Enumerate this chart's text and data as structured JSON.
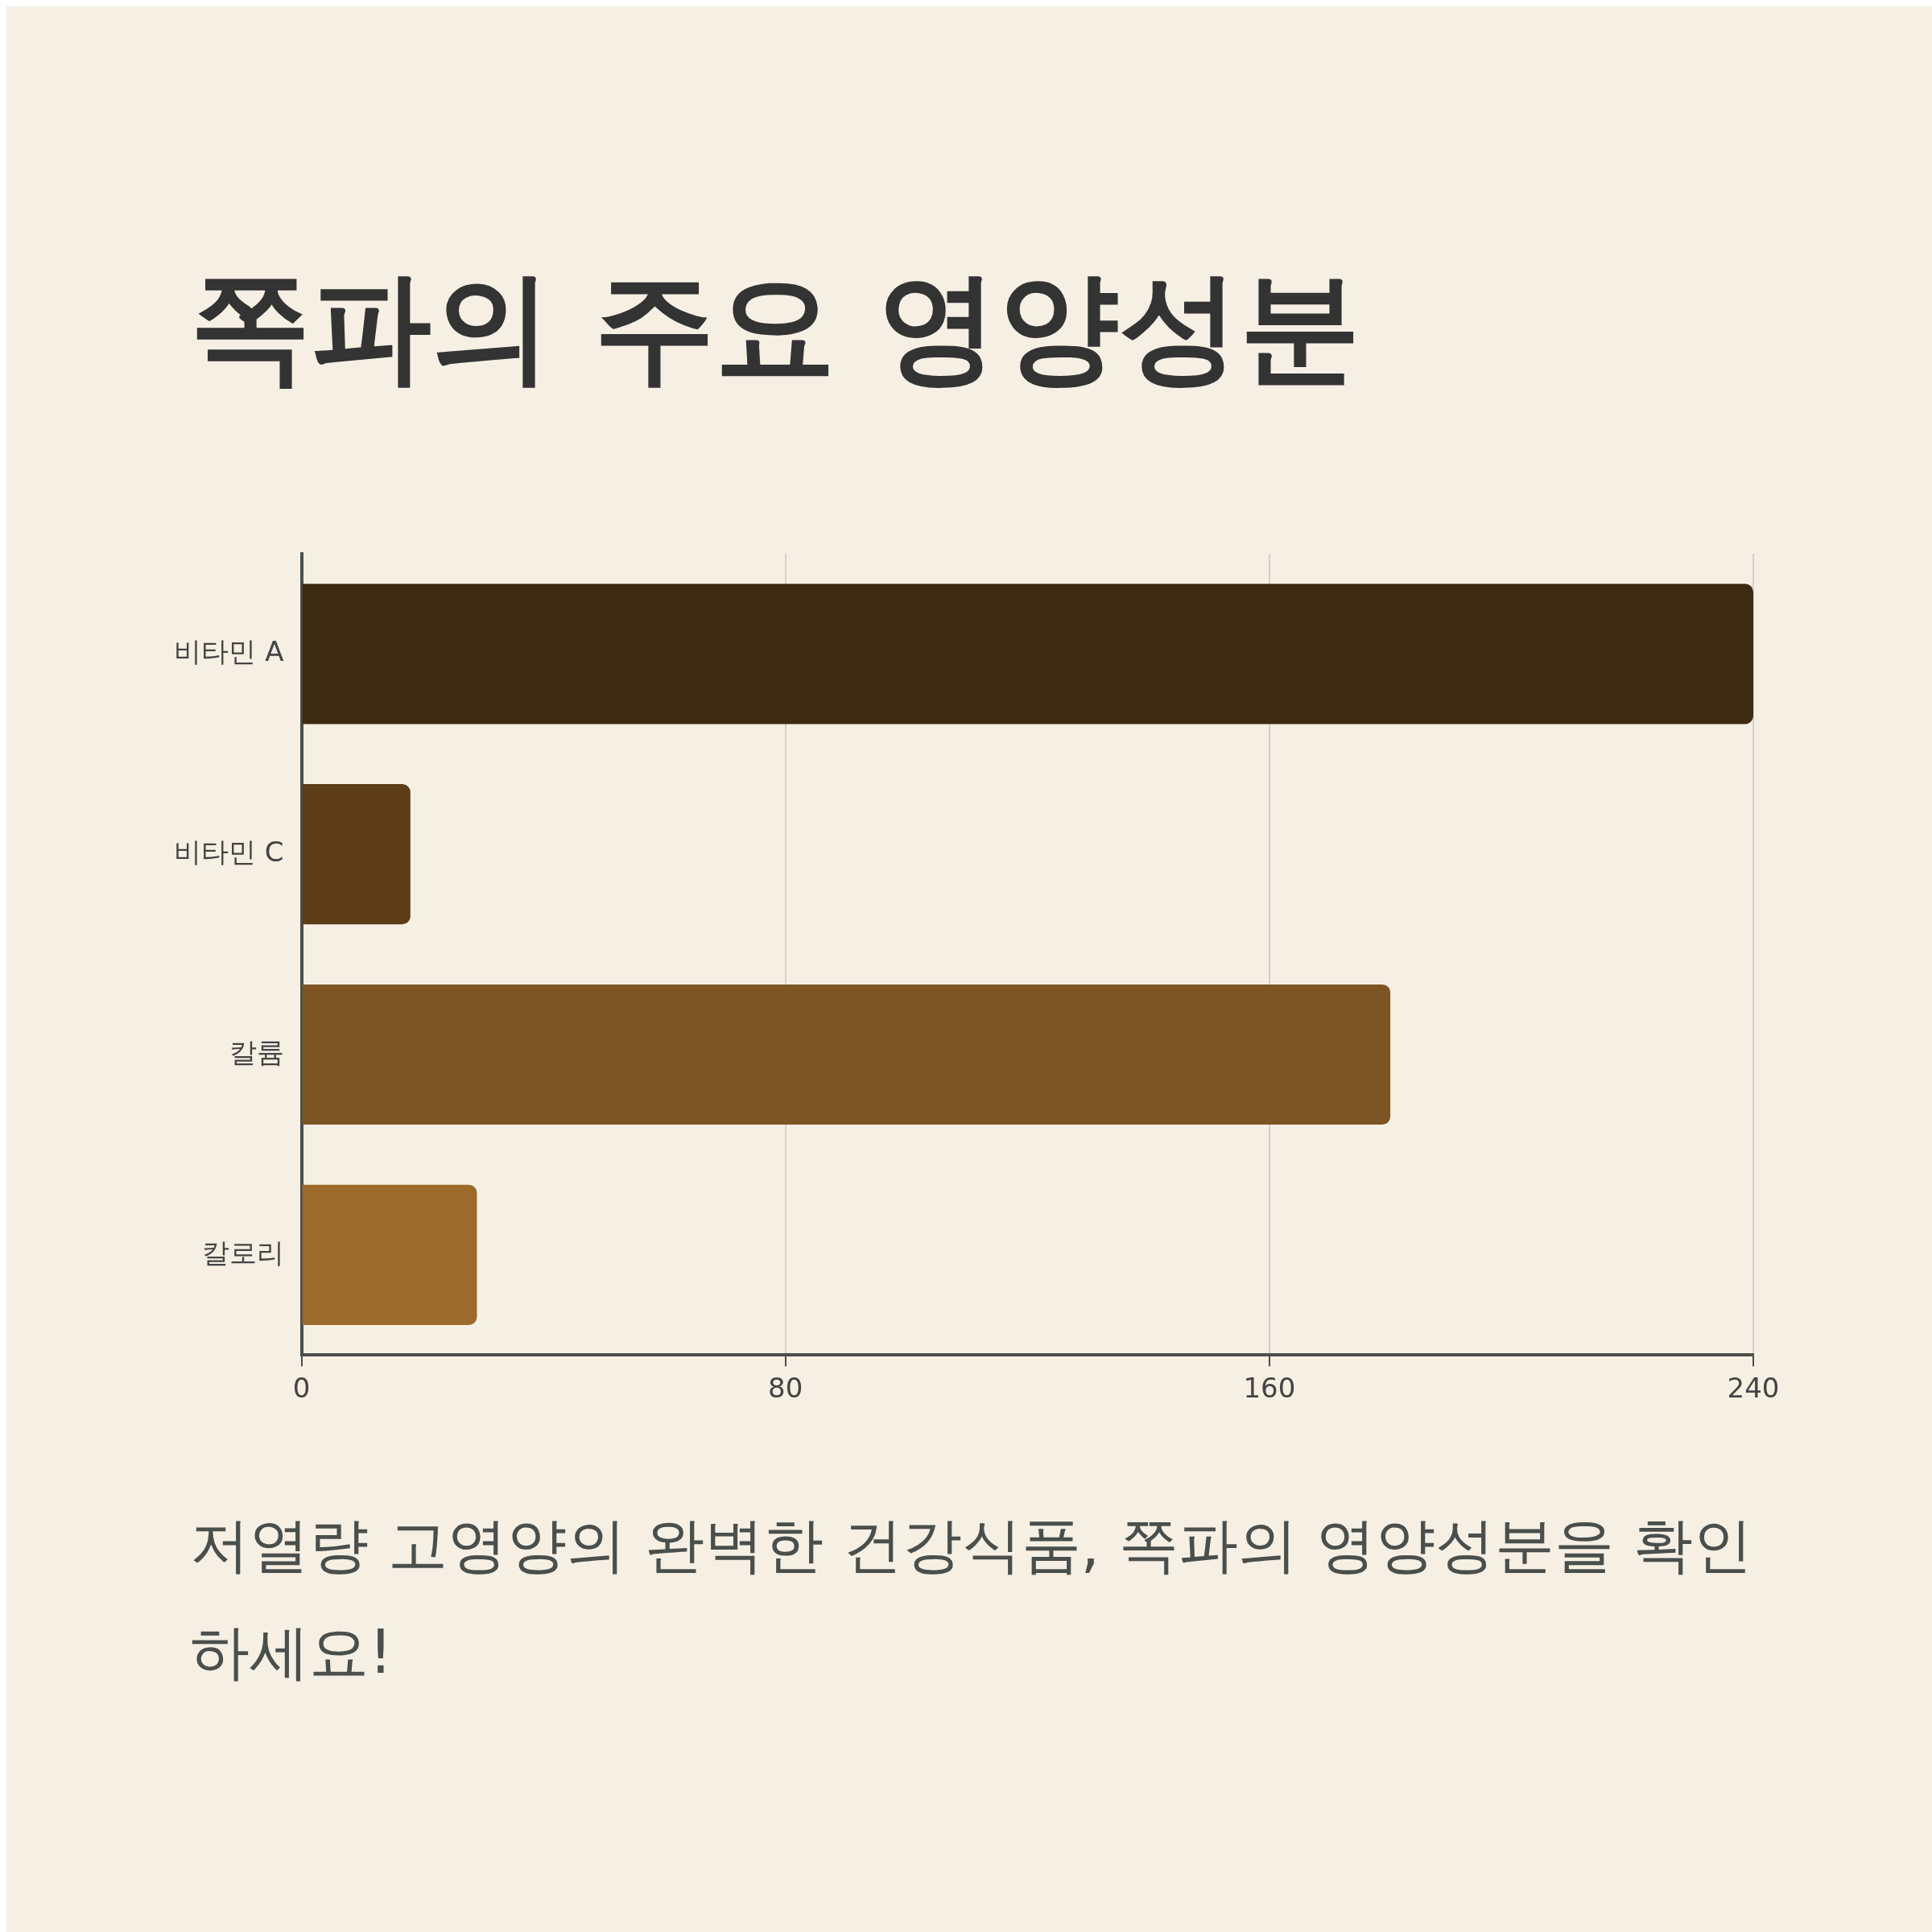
{
  "chart_data": {
    "type": "bar",
    "orientation": "horizontal",
    "title": "쪽파의 주요 영양성분",
    "categories": [
      "비타민 A",
      "비타민 C",
      "칼륨",
      "칼로리"
    ],
    "values": [
      240,
      18,
      180,
      29
    ],
    "colors": [
      "#3d2a12",
      "#5c3d18",
      "#7d5424",
      "#9c6a2a"
    ],
    "xlim": [
      0,
      240
    ],
    "xticks": [
      0,
      80,
      160,
      240
    ],
    "grid": "x",
    "legend": false,
    "annotations": [
      "저열량 고영양의 완벽한 건강식품, 쪽파의 영양성분을 확인하세요!"
    ]
  }
}
